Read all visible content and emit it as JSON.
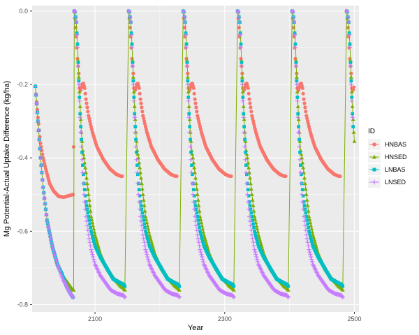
{
  "chart_data": {
    "type": "scatter",
    "title": "",
    "xlabel": "Year",
    "ylabel": "Mg Potential-Actual Uptake Difference (kg/ha)",
    "xlim": [
      2003,
      2507
    ],
    "ylim": [
      -0.82,
      0.015
    ],
    "x_ticks": [
      2100,
      2300,
      2500
    ],
    "x_tick_labels": [
      "2100",
      "2300",
      "2500"
    ],
    "y_ticks": [
      0.0,
      -0.2,
      -0.4,
      -0.6,
      -0.8
    ],
    "y_tick_labels": [
      "0.0",
      "-0.2",
      "-0.4",
      "-0.6",
      "-0.8"
    ],
    "grid": true,
    "panel_background": "#EBEBEB",
    "legend": {
      "title": "ID",
      "position": "right"
    },
    "cycles": {
      "starts": [
        2068,
        2152,
        2236,
        2320,
        2404,
        2488
      ],
      "length": 84
    },
    "series": [
      {
        "name": "HNBAS",
        "color": "#F8766D",
        "marker": "circle",
        "line": false,
        "first_segment": [
          [
            2008,
            -0.205
          ],
          [
            2012,
            -0.29
          ],
          [
            2016,
            -0.36
          ],
          [
            2020,
            -0.4
          ],
          [
            2024,
            -0.43
          ],
          [
            2030,
            -0.47
          ],
          [
            2036,
            -0.49
          ],
          [
            2044,
            -0.505
          ],
          [
            2052,
            -0.507
          ],
          [
            2060,
            -0.503
          ],
          [
            2066,
            -0.5
          ],
          [
            2067,
            -0.37
          ]
        ],
        "cycle_template": [
          [
            0,
            0.0
          ],
          [
            1,
            -0.02
          ],
          [
            3,
            -0.07
          ],
          [
            5,
            -0.13
          ],
          [
            7,
            -0.17
          ],
          [
            8,
            -0.21
          ],
          [
            10,
            -0.215
          ],
          [
            12,
            -0.2
          ],
          [
            14,
            -0.197
          ],
          [
            16,
            -0.21
          ],
          [
            18,
            -0.24
          ],
          [
            22,
            -0.285
          ],
          [
            28,
            -0.33
          ],
          [
            35,
            -0.37
          ],
          [
            45,
            -0.405
          ],
          [
            55,
            -0.43
          ],
          [
            65,
            -0.445
          ],
          [
            72,
            -0.45
          ],
          [
            74,
            -0.45
          ]
        ],
        "last_partial_end": 11
      },
      {
        "name": "HNSED",
        "color": "#7CAE00",
        "marker": "triangle",
        "line": true,
        "first_segment": [
          [
            2008,
            -0.205
          ],
          [
            2012,
            -0.3
          ],
          [
            2016,
            -0.4
          ],
          [
            2020,
            -0.48
          ],
          [
            2026,
            -0.57
          ],
          [
            2034,
            -0.64
          ],
          [
            2042,
            -0.69
          ],
          [
            2050,
            -0.72
          ],
          [
            2058,
            -0.74
          ],
          [
            2066,
            -0.76
          ],
          [
            2067,
            -0.76
          ]
        ],
        "cycle_template": [
          [
            0,
            0.0
          ],
          [
            1,
            -0.002
          ],
          [
            3,
            -0.03
          ],
          [
            5,
            -0.09
          ],
          [
            7,
            -0.18
          ],
          [
            9,
            -0.26
          ],
          [
            11,
            -0.33
          ],
          [
            13,
            -0.38
          ],
          [
            15,
            -0.4
          ],
          [
            18,
            -0.44
          ],
          [
            22,
            -0.5
          ],
          [
            26,
            -0.56
          ],
          [
            32,
            -0.61
          ],
          [
            40,
            -0.66
          ],
          [
            50,
            -0.7
          ],
          [
            62,
            -0.73
          ],
          [
            72,
            -0.75
          ],
          [
            76,
            -0.755
          ],
          [
            78,
            -0.76
          ]
        ],
        "last_partial_end": 12
      },
      {
        "name": "LNBAS",
        "color": "#00BFC4",
        "marker": "square",
        "line": false,
        "first_segment": [
          [
            2008,
            -0.205
          ],
          [
            2012,
            -0.3
          ],
          [
            2016,
            -0.4
          ],
          [
            2020,
            -0.48
          ],
          [
            2026,
            -0.57
          ],
          [
            2034,
            -0.64
          ],
          [
            2042,
            -0.69
          ],
          [
            2050,
            -0.72
          ],
          [
            2056,
            -0.75
          ],
          [
            2062,
            -0.77
          ],
          [
            2066,
            -0.78
          ]
        ],
        "cycle_template": [
          [
            0,
            0.0
          ],
          [
            1,
            -0.002
          ],
          [
            3,
            -0.03
          ],
          [
            5,
            -0.09
          ],
          [
            7,
            -0.19
          ],
          [
            9,
            -0.28
          ],
          [
            11,
            -0.35
          ],
          [
            13,
            -0.42
          ],
          [
            15,
            -0.47
          ],
          [
            18,
            -0.52
          ],
          [
            22,
            -0.56
          ],
          [
            26,
            -0.6
          ],
          [
            32,
            -0.64
          ],
          [
            40,
            -0.67
          ],
          [
            50,
            -0.7
          ],
          [
            60,
            -0.73
          ],
          [
            70,
            -0.74
          ],
          [
            76,
            -0.745
          ],
          [
            78,
            -0.75
          ]
        ],
        "last_partial_end": 10
      },
      {
        "name": "LNSED",
        "color": "#C77CFF",
        "marker": "plus",
        "line": false,
        "first_segment": [
          [
            2008,
            -0.205
          ],
          [
            2012,
            -0.3
          ],
          [
            2016,
            -0.4
          ],
          [
            2020,
            -0.48
          ],
          [
            2026,
            -0.57
          ],
          [
            2034,
            -0.64
          ],
          [
            2042,
            -0.69
          ],
          [
            2050,
            -0.73
          ],
          [
            2056,
            -0.75
          ],
          [
            2062,
            -0.77
          ],
          [
            2066,
            -0.78
          ]
        ],
        "cycle_template": [
          [
            0,
            0.0
          ],
          [
            1,
            -0.002
          ],
          [
            3,
            -0.03
          ],
          [
            5,
            -0.1
          ],
          [
            7,
            -0.2
          ],
          [
            9,
            -0.29
          ],
          [
            11,
            -0.37
          ],
          [
            13,
            -0.44
          ],
          [
            15,
            -0.5
          ],
          [
            18,
            -0.56
          ],
          [
            22,
            -0.61
          ],
          [
            26,
            -0.65
          ],
          [
            32,
            -0.69
          ],
          [
            40,
            -0.72
          ],
          [
            48,
            -0.74
          ],
          [
            56,
            -0.76
          ],
          [
            66,
            -0.77
          ],
          [
            76,
            -0.775
          ],
          [
            78,
            -0.78
          ]
        ],
        "last_partial_end": 9
      }
    ]
  }
}
